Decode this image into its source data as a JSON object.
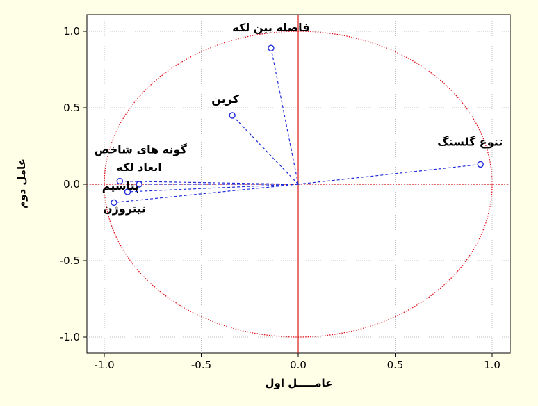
{
  "chart_data": {
    "type": "scatter",
    "subtype": "correlation-circle",
    "title": "",
    "xlabel": "عامـــــل اول",
    "ylabel": "عامل دوم",
    "xlim": [
      -1.1,
      1.1
    ],
    "ylim": [
      -1.1,
      1.1
    ],
    "xticks": [
      -1.0,
      -0.5,
      0.0,
      0.5,
      1.0
    ],
    "yticks": [
      -1.0,
      -0.5,
      0.0,
      0.5,
      1.0
    ],
    "xtick_labels": [
      "-1.0",
      "-0.5",
      "0.0",
      "0.5",
      "1.0"
    ],
    "ytick_labels": [
      "-1.0",
      "-0.5",
      "0.0",
      "0.5",
      "1.0"
    ],
    "grid": true,
    "unit_circle": true,
    "colors": {
      "background": "#ffffe8",
      "plot_background": "#ffffff",
      "circle": "#e0101c",
      "zero_lines": "#d81818",
      "vectors": "#1f2bd8",
      "points": "#1f2bd8",
      "grid": "#bdbdbd"
    },
    "points": [
      {
        "label": "فاصله بین لکه",
        "x": -0.14,
        "y": 0.89
      },
      {
        "label": "کربن",
        "x": -0.34,
        "y": 0.45
      },
      {
        "label": "تنوع گلسنگ",
        "x": 0.94,
        "y": 0.13
      },
      {
        "label": "گونه های شاخص",
        "x": -0.92,
        "y": 0.02
      },
      {
        "label": "ابعاد لکه",
        "x": -0.82,
        "y": 0.0
      },
      {
        "label": "پتاسیم",
        "x": -0.88,
        "y": -0.05
      },
      {
        "label": "نیتروژن",
        "x": -0.95,
        "y": -0.12
      }
    ]
  }
}
